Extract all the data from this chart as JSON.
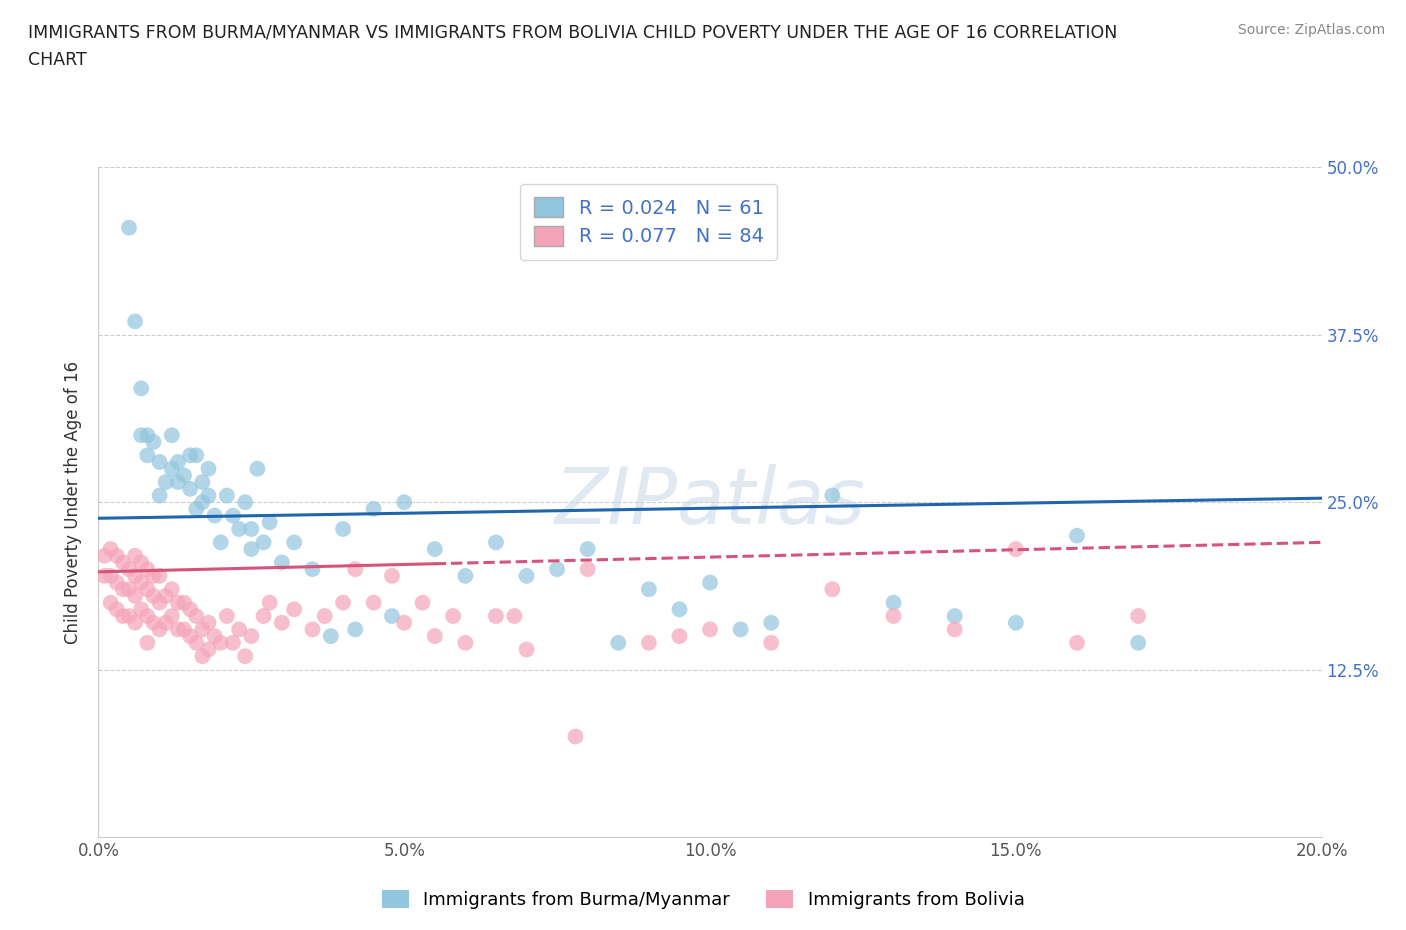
{
  "title_line1": "IMMIGRANTS FROM BURMA/MYANMAR VS IMMIGRANTS FROM BOLIVIA CHILD POVERTY UNDER THE AGE OF 16 CORRELATION",
  "title_line2": "CHART",
  "source_text": "Source: ZipAtlas.com",
  "ylabel": "Child Poverty Under the Age of 16",
  "xlim": [
    0.0,
    0.2
  ],
  "ylim": [
    0.0,
    0.5
  ],
  "xticks": [
    0.0,
    0.05,
    0.1,
    0.15,
    0.2
  ],
  "xticklabels": [
    "0.0%",
    "5.0%",
    "10.0%",
    "15.0%",
    "20.0%"
  ],
  "yticks": [
    0.0,
    0.125,
    0.25,
    0.375,
    0.5
  ],
  "yticklabels": [
    "",
    "12.5%",
    "25.0%",
    "37.5%",
    "50.0%"
  ],
  "series1_label": "Immigrants from Burma/Myanmar",
  "series2_label": "Immigrants from Bolivia",
  "R1": 0.024,
  "N1": 61,
  "R2": 0.077,
  "N2": 84,
  "color1": "#92c5de",
  "color2": "#f4a4b8",
  "trend1_color": "#2166ac",
  "trend2_color": "#d6547a",
  "background_color": "#ffffff",
  "watermark": "ZIPatlas",
  "trend1_x0": 0.0,
  "trend1_y0": 0.238,
  "trend1_x1": 0.2,
  "trend1_y1": 0.253,
  "trend2_x0": 0.0,
  "trend2_y0": 0.198,
  "trend2_x1": 0.2,
  "trend2_y1": 0.22,
  "trend2_dash_x0": 0.055,
  "trend2_dash_y0": 0.207,
  "series1_x": [
    0.005,
    0.006,
    0.007,
    0.007,
    0.008,
    0.008,
    0.009,
    0.01,
    0.01,
    0.011,
    0.012,
    0.012,
    0.013,
    0.013,
    0.014,
    0.015,
    0.015,
    0.016,
    0.016,
    0.017,
    0.017,
    0.018,
    0.018,
    0.019,
    0.02,
    0.021,
    0.022,
    0.023,
    0.024,
    0.025,
    0.026,
    0.027,
    0.028,
    0.03,
    0.032,
    0.035,
    0.04,
    0.045,
    0.05,
    0.055,
    0.06,
    0.065,
    0.07,
    0.075,
    0.08,
    0.09,
    0.095,
    0.1,
    0.11,
    0.12,
    0.13,
    0.15,
    0.16,
    0.025,
    0.085,
    0.105,
    0.14,
    0.17,
    0.038,
    0.042,
    0.048
  ],
  "series1_y": [
    0.455,
    0.385,
    0.335,
    0.3,
    0.3,
    0.285,
    0.295,
    0.28,
    0.255,
    0.265,
    0.275,
    0.3,
    0.28,
    0.265,
    0.27,
    0.26,
    0.285,
    0.245,
    0.285,
    0.25,
    0.265,
    0.255,
    0.275,
    0.24,
    0.22,
    0.255,
    0.24,
    0.23,
    0.25,
    0.23,
    0.275,
    0.22,
    0.235,
    0.205,
    0.22,
    0.2,
    0.23,
    0.245,
    0.25,
    0.215,
    0.195,
    0.22,
    0.195,
    0.2,
    0.215,
    0.185,
    0.17,
    0.19,
    0.16,
    0.255,
    0.175,
    0.16,
    0.225,
    0.215,
    0.145,
    0.155,
    0.165,
    0.145,
    0.15,
    0.155,
    0.165
  ],
  "series2_x": [
    0.001,
    0.001,
    0.002,
    0.002,
    0.002,
    0.003,
    0.003,
    0.003,
    0.004,
    0.004,
    0.004,
    0.005,
    0.005,
    0.005,
    0.006,
    0.006,
    0.006,
    0.006,
    0.007,
    0.007,
    0.007,
    0.008,
    0.008,
    0.008,
    0.008,
    0.009,
    0.009,
    0.009,
    0.01,
    0.01,
    0.01,
    0.011,
    0.011,
    0.012,
    0.012,
    0.013,
    0.013,
    0.014,
    0.014,
    0.015,
    0.015,
    0.016,
    0.016,
    0.017,
    0.017,
    0.018,
    0.018,
    0.019,
    0.02,
    0.021,
    0.022,
    0.023,
    0.025,
    0.027,
    0.03,
    0.035,
    0.04,
    0.045,
    0.05,
    0.055,
    0.06,
    0.065,
    0.07,
    0.08,
    0.09,
    0.095,
    0.1,
    0.11,
    0.12,
    0.13,
    0.14,
    0.15,
    0.16,
    0.17,
    0.024,
    0.028,
    0.032,
    0.037,
    0.042,
    0.048,
    0.053,
    0.058,
    0.068,
    0.078
  ],
  "series2_y": [
    0.21,
    0.195,
    0.215,
    0.195,
    0.175,
    0.21,
    0.19,
    0.17,
    0.205,
    0.185,
    0.165,
    0.2,
    0.185,
    0.165,
    0.21,
    0.195,
    0.18,
    0.16,
    0.205,
    0.19,
    0.17,
    0.2,
    0.185,
    0.165,
    0.145,
    0.195,
    0.18,
    0.16,
    0.195,
    0.175,
    0.155,
    0.18,
    0.16,
    0.185,
    0.165,
    0.175,
    0.155,
    0.175,
    0.155,
    0.17,
    0.15,
    0.165,
    0.145,
    0.155,
    0.135,
    0.16,
    0.14,
    0.15,
    0.145,
    0.165,
    0.145,
    0.155,
    0.15,
    0.165,
    0.16,
    0.155,
    0.175,
    0.175,
    0.16,
    0.15,
    0.145,
    0.165,
    0.14,
    0.2,
    0.145,
    0.15,
    0.155,
    0.145,
    0.185,
    0.165,
    0.155,
    0.215,
    0.145,
    0.165,
    0.135,
    0.175,
    0.17,
    0.165,
    0.2,
    0.195,
    0.175,
    0.165,
    0.165,
    0.075
  ]
}
